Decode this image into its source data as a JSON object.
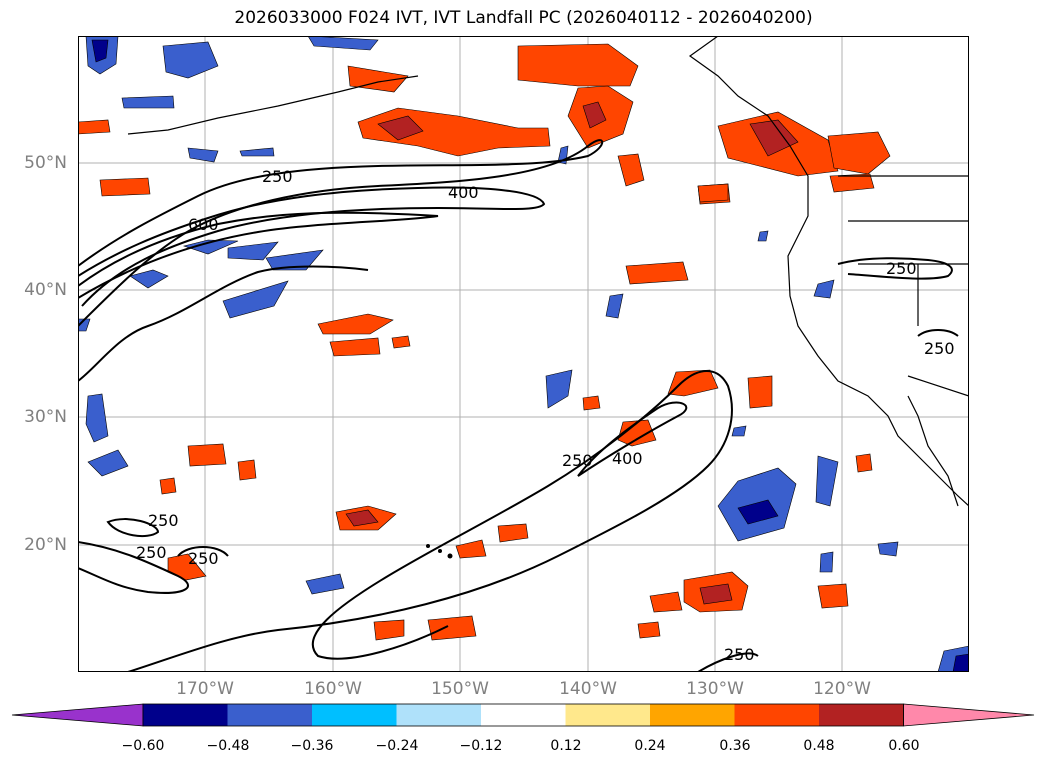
{
  "title": "2026033000 F024 IVT, IVT Landfall PC (2026040112 - 2026040200)",
  "axes": {
    "lat_labels": [
      "50°N",
      "40°N",
      "30°N",
      "20°N"
    ],
    "lon_labels": [
      "170°W",
      "160°W",
      "150°W",
      "140°W",
      "130°W",
      "120°W"
    ]
  },
  "contour_labels": [
    "250",
    "400",
    "600",
    "250",
    "250",
    "250",
    "400",
    "250",
    "250",
    "250",
    "250"
  ],
  "colorbar": {
    "ticks": [
      "−0.60",
      "−0.48",
      "−0.36",
      "−0.24",
      "−0.12",
      "0.12",
      "0.24",
      "0.36",
      "0.48",
      "0.60"
    ],
    "colors": [
      "#9932cc",
      "#00008b",
      "#3a5fcd",
      "#00bfff",
      "#afe1fa",
      "#ffffff",
      "#ffe88c",
      "#ffa500",
      "#ff4500",
      "#b22222",
      "#ff88aa"
    ]
  },
  "colors": {
    "coast": "#000000",
    "grid": "#b0b0b0",
    "contour": "#000000"
  }
}
